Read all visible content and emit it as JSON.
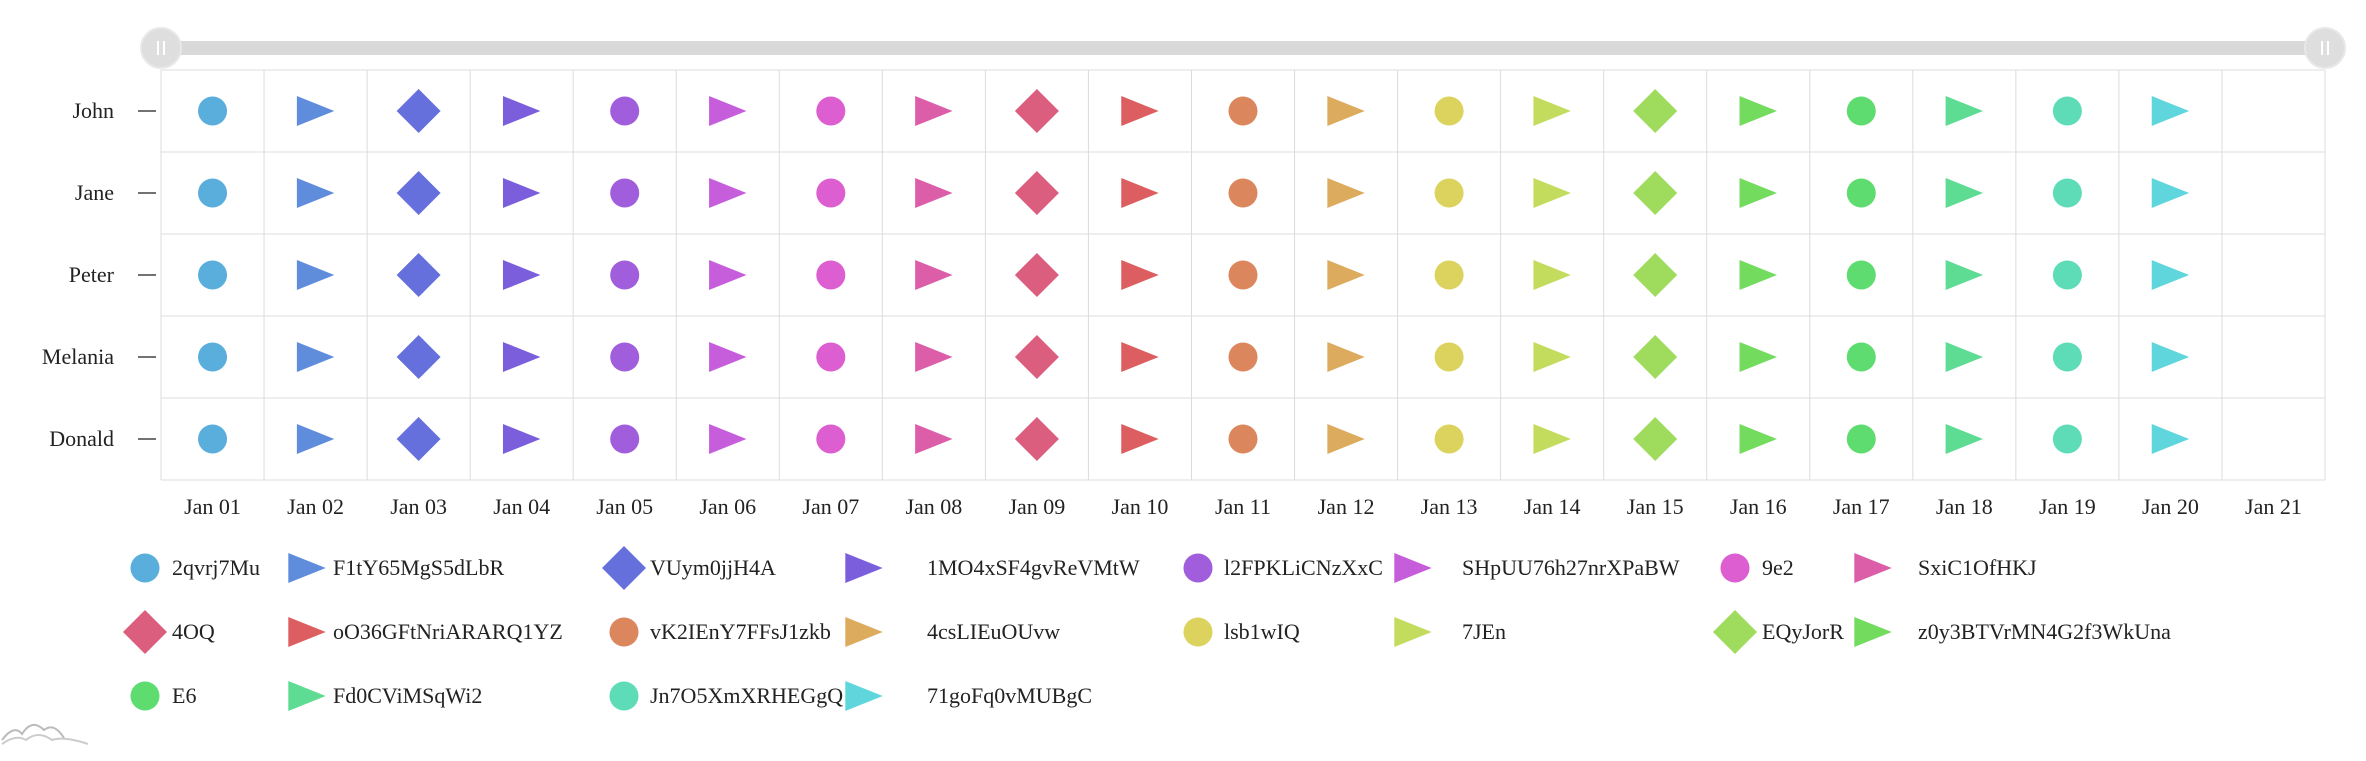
{
  "chart_data": {
    "type": "scatter",
    "x_categories": [
      "Jan 01",
      "Jan 02",
      "Jan 03",
      "Jan 04",
      "Jan 05",
      "Jan 06",
      "Jan 07",
      "Jan 08",
      "Jan 09",
      "Jan 10",
      "Jan 11",
      "Jan 12",
      "Jan 13",
      "Jan 14",
      "Jan 15",
      "Jan 16",
      "Jan 17",
      "Jan 18",
      "Jan 19",
      "Jan 20",
      "Jan 21"
    ],
    "y_categories": [
      "John",
      "Jane",
      "Peter",
      "Melania",
      "Donald"
    ],
    "grid": true,
    "scrollbar": {
      "start": 0,
      "end": 1
    },
    "legend_position": "bottom",
    "series": [
      {
        "name": "2qvrj7Mu",
        "x": "Jan 01",
        "shape": "circle",
        "color": "#5aaedc"
      },
      {
        "name": "F1tY65MgS5dLbR",
        "x": "Jan 02",
        "shape": "triangle",
        "color": "#5f8ddc"
      },
      {
        "name": "VUym0jjH4A",
        "x": "Jan 03",
        "shape": "diamond",
        "color": "#6670dc"
      },
      {
        "name": "1MO4xSF4gvReVMtW",
        "x": "Jan 04",
        "shape": "triangle",
        "color": "#7a5edc"
      },
      {
        "name": "l2FPKLiCNzXxC",
        "x": "Jan 05",
        "shape": "circle",
        "color": "#a05edc"
      },
      {
        "name": "SHpUU76h27nrXPaBW",
        "x": "Jan 06",
        "shape": "triangle",
        "color": "#c65edc"
      },
      {
        "name": "9e2",
        "x": "Jan 07",
        "shape": "circle",
        "color": "#dc5ed0"
      },
      {
        "name": "SxiC1OfHKJ",
        "x": "Jan 08",
        "shape": "triangle",
        "color": "#dc5ea9"
      },
      {
        "name": "4OQ",
        "x": "Jan 09",
        "shape": "diamond",
        "color": "#dc5e7e"
      },
      {
        "name": "oO36GFtNriARARQ1YZ",
        "x": "Jan 10",
        "shape": "triangle",
        "color": "#dc5e60"
      },
      {
        "name": "vK2IEnY7FFsJ1zkb",
        "x": "Jan 11",
        "shape": "circle",
        "color": "#dc865e"
      },
      {
        "name": "4csLIEuOUvw",
        "x": "Jan 12",
        "shape": "triangle",
        "color": "#dcab5e"
      },
      {
        "name": "lsb1wIQ",
        "x": "Jan 13",
        "shape": "circle",
        "color": "#dcd25e"
      },
      {
        "name": "7JEn",
        "x": "Jan 14",
        "shape": "triangle",
        "color": "#c3dc5e"
      },
      {
        "name": "EQyJorR",
        "x": "Jan 15",
        "shape": "diamond",
        "color": "#9fdc5e"
      },
      {
        "name": "z0y3BTVrMN4G2f3WkUna",
        "x": "Jan 16",
        "shape": "triangle",
        "color": "#73dc5e"
      },
      {
        "name": "E6",
        "x": "Jan 17",
        "shape": "circle",
        "color": "#5edc70"
      },
      {
        "name": "Fd0CViMSqWi2",
        "x": "Jan 18",
        "shape": "triangle",
        "color": "#5edc93"
      },
      {
        "name": "Jn7O5XmXRHEGgQ",
        "x": "Jan 19",
        "shape": "circle",
        "color": "#5edcb8"
      },
      {
        "name": "71goFq0vMUBgC",
        "x": "Jan 20",
        "shape": "triangle",
        "color": "#5ed6dc"
      }
    ]
  }
}
